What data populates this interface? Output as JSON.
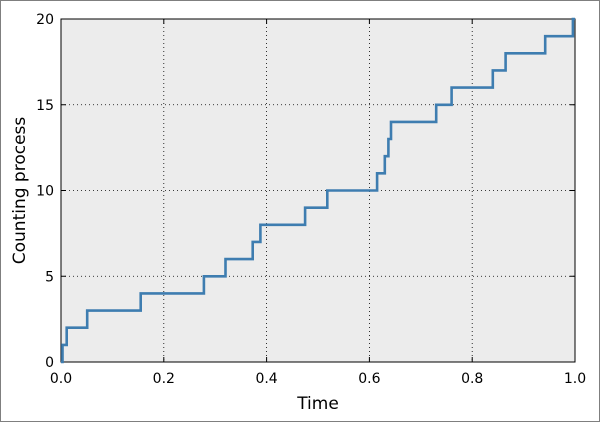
{
  "chart_data": {
    "type": "line",
    "title": "",
    "xlabel": "Time",
    "ylabel": "Counting process",
    "xlim": [
      0.0,
      1.0
    ],
    "ylim": [
      0,
      20
    ],
    "xticks": [
      "0.0",
      "0.2",
      "0.4",
      "0.6",
      "0.8",
      "1.0"
    ],
    "yticks": [
      "0",
      "5",
      "10",
      "15",
      "20"
    ],
    "grid": true,
    "background": "#ececec",
    "line_color": "#3e7db0",
    "series": [
      {
        "x": [
          0.0,
          0.003,
          0.011,
          0.051,
          0.155,
          0.278,
          0.32,
          0.373,
          0.388,
          0.475,
          0.518,
          0.615,
          0.63,
          0.637,
          0.642,
          0.73,
          0.76,
          0.84,
          0.865,
          0.942,
          0.996,
          1.0
        ],
        "y": [
          0,
          1,
          2,
          3,
          4,
          5,
          6,
          7,
          8,
          9,
          10,
          11,
          12,
          13,
          14,
          15,
          16,
          17,
          18,
          19,
          20,
          20
        ]
      }
    ]
  }
}
